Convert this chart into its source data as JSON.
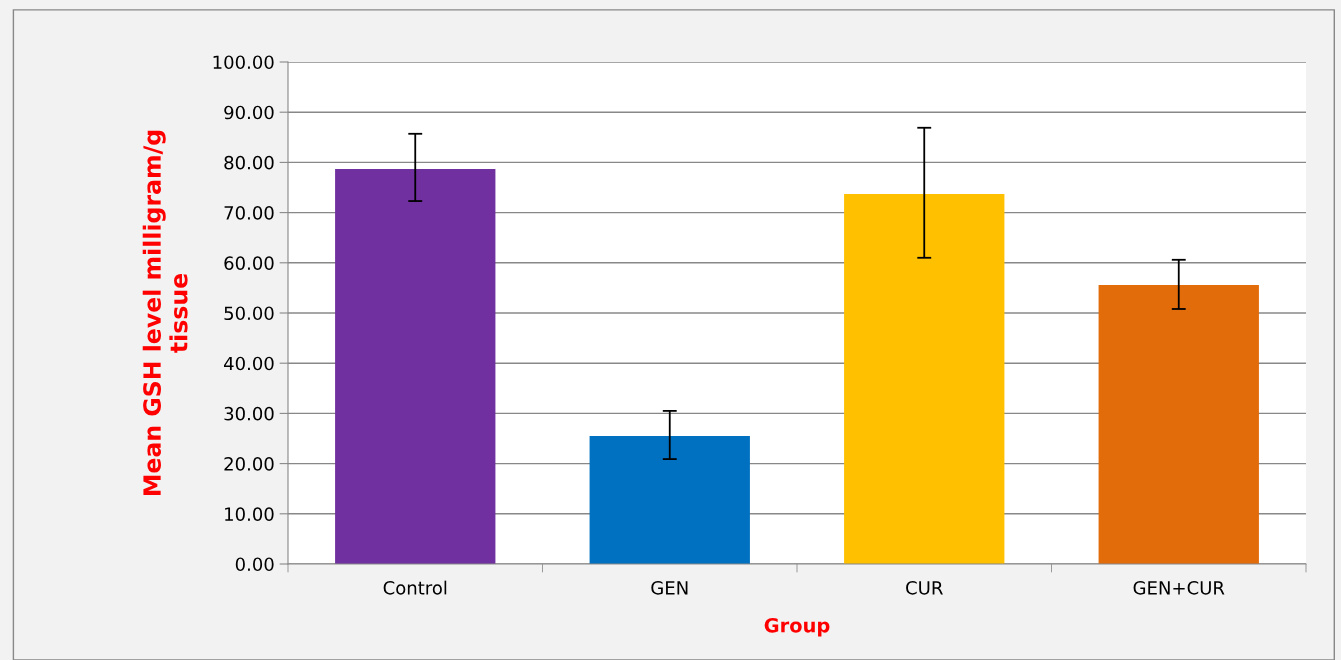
{
  "chart_data": {
    "type": "bar",
    "xlabel": "Group",
    "ylabel": "Mean GSH level milligram/g\ntissue",
    "categories": [
      "Control",
      "GEN",
      "CUR",
      "GEN+CUR"
    ],
    "values": [
      78.7,
      25.5,
      73.7,
      55.6
    ],
    "colors": [
      "#7030a0",
      "#0070c0",
      "#ffc000",
      "#e36c0a"
    ],
    "errors": [
      [
        72.3,
        85.7
      ],
      [
        20.9,
        30.5
      ],
      [
        61.0,
        86.9
      ],
      [
        50.8,
        60.6
      ]
    ],
    "ylim": [
      0,
      100
    ],
    "yticks": [
      {
        "value": 0,
        "label": "0.00"
      },
      {
        "value": 10,
        "label": "10.00"
      },
      {
        "value": 20,
        "label": "20.00"
      },
      {
        "value": 30,
        "label": "30.00"
      },
      {
        "value": 40,
        "label": "40.00"
      },
      {
        "value": 50,
        "label": "50.00"
      },
      {
        "value": 60,
        "label": "60.00"
      },
      {
        "value": 70,
        "label": "70.00"
      },
      {
        "value": 80,
        "label": "80.00"
      },
      {
        "value": 90,
        "label": "90.00"
      },
      {
        "value": 100,
        "label": "100.00"
      }
    ],
    "grid": "y",
    "legend": false
  }
}
